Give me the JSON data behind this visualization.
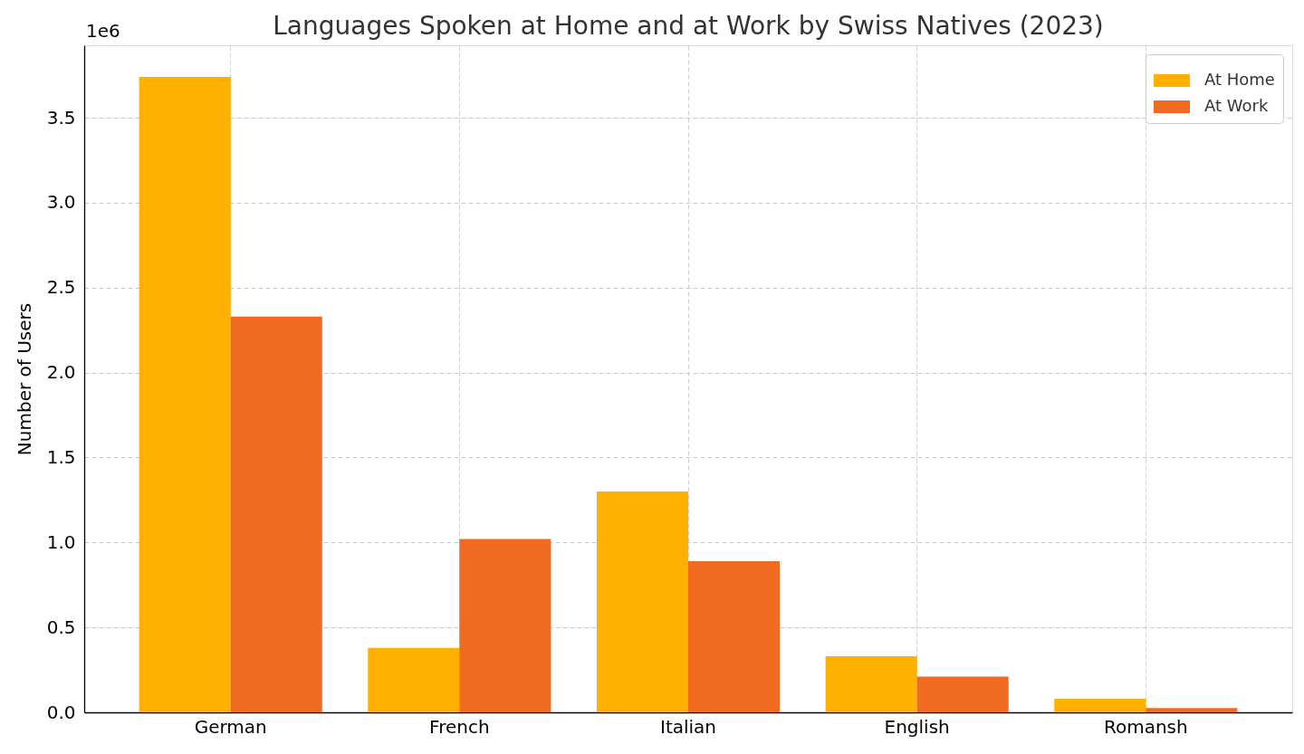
{
  "chart_data": {
    "type": "bar",
    "title": "Languages Spoken at Home and at Work by Swiss Natives (2023)",
    "ylabel": "Number of Users",
    "annotations": [
      "1e6"
    ],
    "categories": [
      "German",
      "French",
      "Italian",
      "English",
      "Romansh"
    ],
    "series": [
      {
        "name": "At Home",
        "color": "#ffb000",
        "values": [
          3.74,
          0.38,
          1.3,
          0.33,
          0.08
        ]
      },
      {
        "name": "At Work",
        "color": "#f16a22",
        "values": [
          2.33,
          1.02,
          0.89,
          0.21,
          0.025
        ]
      }
    ],
    "ylim": [
      0,
      3.927
    ],
    "yticks": [
      {
        "value": 0,
        "label": "0.0"
      },
      0.5,
      {
        "value": 1,
        "label": "1.0"
      },
      1.5,
      {
        "value": 2,
        "label": "2.0"
      },
      2.5,
      {
        "value": 3,
        "label": "3.0"
      },
      3.5
    ],
    "grid": true,
    "legend": "top right"
  }
}
